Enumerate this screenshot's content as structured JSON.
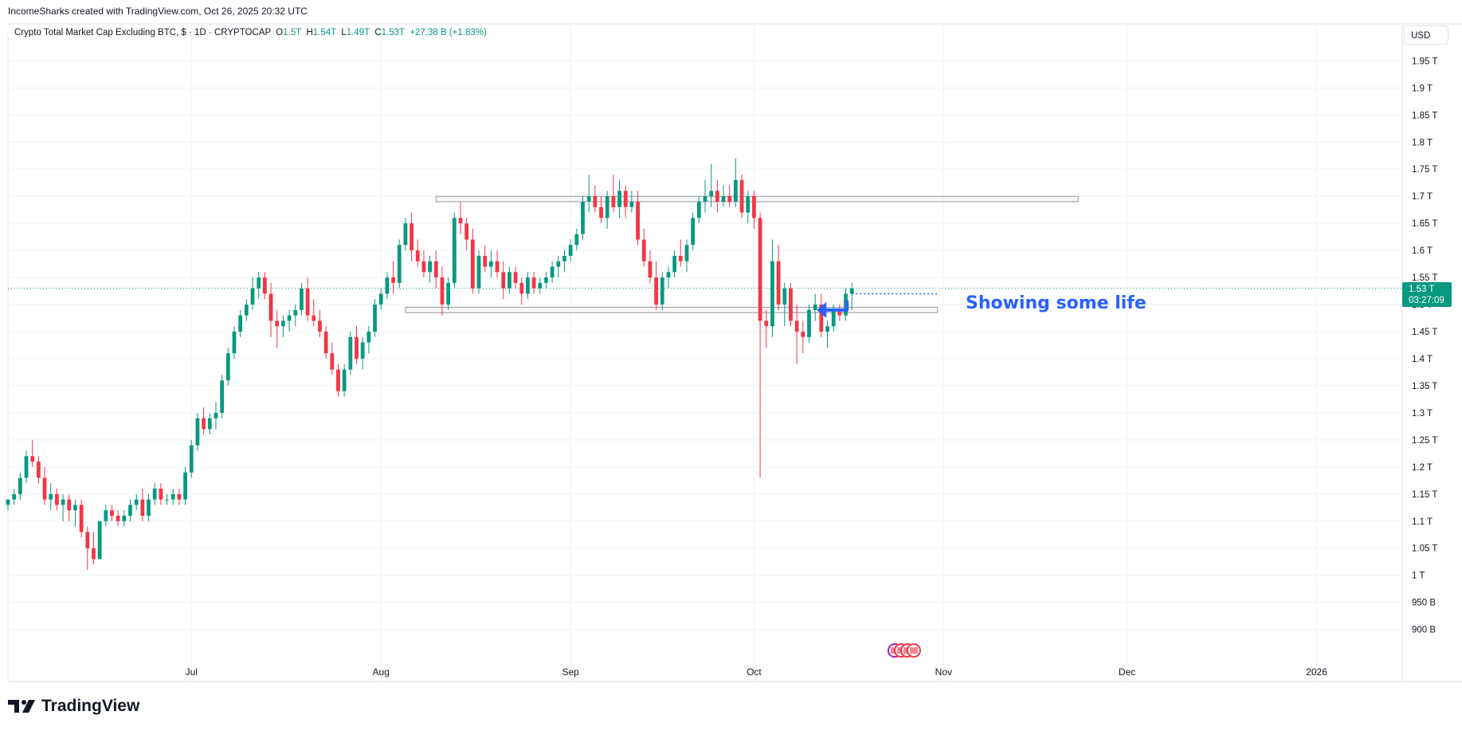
{
  "header": {
    "credit": "IncomeSharks created with TradingView.com, Oct 26, 2025 20:32 UTC",
    "currency": "USD"
  },
  "legend": {
    "symbol": "Crypto Total Market Cap Excluding BTC, $ · 1D · CRYPTOCAP",
    "o_label": "O",
    "o_value": "1.5T",
    "h_label": "H",
    "h_value": "1.54T",
    "l_label": "L",
    "l_value": "1.49T",
    "c_label": "C",
    "c_value": "1.53T",
    "change": "+27.38 B (+1.83%)"
  },
  "price_tag": {
    "price": "1.53 T",
    "countdown": "03:27:09"
  },
  "annotation": "Showing some life",
  "brand": {
    "name": "TradingView"
  },
  "colors": {
    "up": "#089981",
    "down": "#f23645",
    "annotation": "#2962ff",
    "grid": "#f0f3fa"
  },
  "chart_data": {
    "type": "candlestick",
    "y_scale": "T (trillion USD)",
    "ylim": [
      0.87,
      1.98
    ],
    "y_ticks": [
      "900 B",
      "950 B",
      "1 T",
      "1.05 T",
      "1.1 T",
      "1.15 T",
      "1.2 T",
      "1.25 T",
      "1.3 T",
      "1.35 T",
      "1.4 T",
      "1.45 T",
      "1.5 T",
      "1.55 T",
      "1.6 T",
      "1.65 T",
      "1.7 T",
      "1.75 T",
      "1.8 T",
      "1.85 T",
      "1.9 T",
      "1.95 T"
    ],
    "y_tick_values": [
      0.9,
      0.95,
      1.0,
      1.05,
      1.1,
      1.15,
      1.2,
      1.25,
      1.3,
      1.35,
      1.4,
      1.45,
      1.5,
      1.55,
      1.6,
      1.65,
      1.7,
      1.75,
      1.8,
      1.85,
      1.9,
      1.95
    ],
    "x_ticks": [
      {
        "label": "Jul",
        "date": "2025-07-01"
      },
      {
        "label": "Aug",
        "date": "2025-08-01"
      },
      {
        "label": "Sep",
        "date": "2025-09-01"
      },
      {
        "label": "Oct",
        "date": "2025-10-01"
      },
      {
        "label": "Nov",
        "date": "2025-11-01"
      },
      {
        "label": "Dec",
        "date": "2025-12-01"
      },
      {
        "label": "2026",
        "date": "2026-01-01"
      }
    ],
    "xlim": [
      "2025-06-01",
      "2026-01-15"
    ],
    "start_date": "2025-06-01",
    "current_price": 1.53,
    "boxes": [
      {
        "start": "2025-08-10",
        "end": "2025-11-23",
        "low": 1.69,
        "high": 1.7
      },
      {
        "start": "2025-08-05",
        "end": "2025-10-31",
        "low": 1.485,
        "high": 1.495
      }
    ],
    "dotted_level": {
      "start": "2025-10-17",
      "end": "2025-10-31",
      "value": 1.52
    },
    "candles": [
      [
        1.13,
        1.14,
        1.12,
        1.14
      ],
      [
        1.14,
        1.16,
        1.13,
        1.15
      ],
      [
        1.15,
        1.19,
        1.14,
        1.18
      ],
      [
        1.18,
        1.23,
        1.17,
        1.22
      ],
      [
        1.22,
        1.25,
        1.2,
        1.21
      ],
      [
        1.21,
        1.22,
        1.17,
        1.18
      ],
      [
        1.18,
        1.2,
        1.13,
        1.14
      ],
      [
        1.14,
        1.17,
        1.12,
        1.15
      ],
      [
        1.15,
        1.16,
        1.12,
        1.13
      ],
      [
        1.13,
        1.15,
        1.1,
        1.14
      ],
      [
        1.14,
        1.15,
        1.1,
        1.12
      ],
      [
        1.12,
        1.14,
        1.09,
        1.13
      ],
      [
        1.13,
        1.14,
        1.07,
        1.08
      ],
      [
        1.08,
        1.09,
        1.01,
        1.05
      ],
      [
        1.05,
        1.08,
        1.02,
        1.03
      ],
      [
        1.03,
        1.1,
        1.03,
        1.1
      ],
      [
        1.1,
        1.13,
        1.09,
        1.12
      ],
      [
        1.12,
        1.13,
        1.1,
        1.11
      ],
      [
        1.11,
        1.12,
        1.09,
        1.1
      ],
      [
        1.1,
        1.12,
        1.09,
        1.11
      ],
      [
        1.11,
        1.14,
        1.1,
        1.13
      ],
      [
        1.13,
        1.15,
        1.12,
        1.14
      ],
      [
        1.14,
        1.16,
        1.1,
        1.11
      ],
      [
        1.11,
        1.15,
        1.1,
        1.14
      ],
      [
        1.14,
        1.17,
        1.13,
        1.16
      ],
      [
        1.16,
        1.17,
        1.13,
        1.14
      ],
      [
        1.14,
        1.15,
        1.13,
        1.14
      ],
      [
        1.14,
        1.16,
        1.13,
        1.15
      ],
      [
        1.15,
        1.16,
        1.13,
        1.14
      ],
      [
        1.14,
        1.2,
        1.13,
        1.19
      ],
      [
        1.19,
        1.25,
        1.18,
        1.24
      ],
      [
        1.24,
        1.3,
        1.23,
        1.29
      ],
      [
        1.29,
        1.31,
        1.26,
        1.27
      ],
      [
        1.27,
        1.3,
        1.26,
        1.29
      ],
      [
        1.29,
        1.32,
        1.27,
        1.3
      ],
      [
        1.3,
        1.37,
        1.29,
        1.36
      ],
      [
        1.36,
        1.42,
        1.35,
        1.41
      ],
      [
        1.41,
        1.46,
        1.4,
        1.45
      ],
      [
        1.45,
        1.49,
        1.44,
        1.48
      ],
      [
        1.48,
        1.51,
        1.47,
        1.5
      ],
      [
        1.5,
        1.55,
        1.49,
        1.53
      ],
      [
        1.53,
        1.56,
        1.51,
        1.55
      ],
      [
        1.55,
        1.56,
        1.51,
        1.52
      ],
      [
        1.52,
        1.54,
        1.44,
        1.47
      ],
      [
        1.47,
        1.49,
        1.42,
        1.46
      ],
      [
        1.46,
        1.48,
        1.44,
        1.47
      ],
      [
        1.47,
        1.49,
        1.45,
        1.48
      ],
      [
        1.48,
        1.5,
        1.46,
        1.49
      ],
      [
        1.49,
        1.54,
        1.48,
        1.53
      ],
      [
        1.53,
        1.55,
        1.47,
        1.48
      ],
      [
        1.48,
        1.51,
        1.46,
        1.47
      ],
      [
        1.47,
        1.49,
        1.44,
        1.45
      ],
      [
        1.45,
        1.46,
        1.4,
        1.41
      ],
      [
        1.41,
        1.43,
        1.37,
        1.38
      ],
      [
        1.38,
        1.39,
        1.33,
        1.34
      ],
      [
        1.34,
        1.39,
        1.33,
        1.38
      ],
      [
        1.38,
        1.45,
        1.37,
        1.44
      ],
      [
        1.44,
        1.46,
        1.39,
        1.4
      ],
      [
        1.4,
        1.44,
        1.38,
        1.43
      ],
      [
        1.43,
        1.46,
        1.41,
        1.45
      ],
      [
        1.45,
        1.51,
        1.44,
        1.5
      ],
      [
        1.5,
        1.53,
        1.49,
        1.52
      ],
      [
        1.52,
        1.56,
        1.51,
        1.55
      ],
      [
        1.55,
        1.58,
        1.52,
        1.54
      ],
      [
        1.54,
        1.62,
        1.53,
        1.61
      ],
      [
        1.61,
        1.66,
        1.6,
        1.65
      ],
      [
        1.65,
        1.67,
        1.58,
        1.6
      ],
      [
        1.6,
        1.62,
        1.57,
        1.58
      ],
      [
        1.58,
        1.6,
        1.55,
        1.56
      ],
      [
        1.56,
        1.59,
        1.54,
        1.58
      ],
      [
        1.58,
        1.6,
        1.53,
        1.55
      ],
      [
        1.55,
        1.57,
        1.48,
        1.5
      ],
      [
        1.5,
        1.55,
        1.49,
        1.54
      ],
      [
        1.54,
        1.67,
        1.53,
        1.66
      ],
      [
        1.66,
        1.69,
        1.63,
        1.65
      ],
      [
        1.65,
        1.66,
        1.6,
        1.62
      ],
      [
        1.62,
        1.64,
        1.52,
        1.53
      ],
      [
        1.53,
        1.6,
        1.52,
        1.59
      ],
      [
        1.59,
        1.61,
        1.56,
        1.57
      ],
      [
        1.57,
        1.6,
        1.55,
        1.58
      ],
      [
        1.58,
        1.6,
        1.55,
        1.56
      ],
      [
        1.56,
        1.58,
        1.51,
        1.53
      ],
      [
        1.53,
        1.57,
        1.52,
        1.56
      ],
      [
        1.56,
        1.57,
        1.53,
        1.54
      ],
      [
        1.54,
        1.55,
        1.5,
        1.52
      ],
      [
        1.52,
        1.56,
        1.51,
        1.55
      ],
      [
        1.55,
        1.56,
        1.52,
        1.53
      ],
      [
        1.53,
        1.55,
        1.52,
        1.54
      ],
      [
        1.54,
        1.56,
        1.53,
        1.55
      ],
      [
        1.55,
        1.58,
        1.54,
        1.57
      ],
      [
        1.57,
        1.59,
        1.55,
        1.58
      ],
      [
        1.58,
        1.6,
        1.56,
        1.59
      ],
      [
        1.59,
        1.62,
        1.58,
        1.61
      ],
      [
        1.61,
        1.64,
        1.6,
        1.63
      ],
      [
        1.63,
        1.7,
        1.62,
        1.69
      ],
      [
        1.69,
        1.74,
        1.67,
        1.7
      ],
      [
        1.7,
        1.72,
        1.67,
        1.68
      ],
      [
        1.68,
        1.7,
        1.65,
        1.66
      ],
      [
        1.66,
        1.71,
        1.64,
        1.7
      ],
      [
        1.7,
        1.74,
        1.67,
        1.68
      ],
      [
        1.68,
        1.73,
        1.66,
        1.71
      ],
      [
        1.71,
        1.72,
        1.66,
        1.68
      ],
      [
        1.68,
        1.71,
        1.67,
        1.69
      ],
      [
        1.69,
        1.71,
        1.61,
        1.62
      ],
      [
        1.62,
        1.64,
        1.57,
        1.58
      ],
      [
        1.58,
        1.6,
        1.54,
        1.55
      ],
      [
        1.55,
        1.58,
        1.49,
        1.5
      ],
      [
        1.5,
        1.56,
        1.49,
        1.55
      ],
      [
        1.55,
        1.57,
        1.53,
        1.56
      ],
      [
        1.56,
        1.6,
        1.55,
        1.59
      ],
      [
        1.59,
        1.62,
        1.57,
        1.58
      ],
      [
        1.58,
        1.62,
        1.56,
        1.61
      ],
      [
        1.61,
        1.67,
        1.6,
        1.66
      ],
      [
        1.66,
        1.7,
        1.65,
        1.69
      ],
      [
        1.69,
        1.73,
        1.67,
        1.7
      ],
      [
        1.7,
        1.76,
        1.68,
        1.71
      ],
      [
        1.71,
        1.73,
        1.67,
        1.69
      ],
      [
        1.69,
        1.72,
        1.68,
        1.7
      ],
      [
        1.7,
        1.72,
        1.68,
        1.69
      ],
      [
        1.69,
        1.77,
        1.68,
        1.73
      ],
      [
        1.73,
        1.74,
        1.66,
        1.67
      ],
      [
        1.67,
        1.71,
        1.65,
        1.7
      ],
      [
        1.7,
        1.71,
        1.64,
        1.66
      ],
      [
        1.66,
        1.67,
        1.18,
        1.47
      ],
      [
        1.47,
        1.49,
        1.42,
        1.46
      ],
      [
        1.46,
        1.62,
        1.44,
        1.58
      ],
      [
        1.58,
        1.61,
        1.49,
        1.5
      ],
      [
        1.5,
        1.54,
        1.46,
        1.53
      ],
      [
        1.53,
        1.54,
        1.46,
        1.47
      ],
      [
        1.47,
        1.5,
        1.39,
        1.45
      ],
      [
        1.45,
        1.47,
        1.41,
        1.44
      ],
      [
        1.44,
        1.5,
        1.43,
        1.49
      ],
      [
        1.49,
        1.52,
        1.47,
        1.5
      ],
      [
        1.5,
        1.52,
        1.44,
        1.45
      ],
      [
        1.45,
        1.47,
        1.42,
        1.46
      ],
      [
        1.46,
        1.5,
        1.45,
        1.49
      ],
      [
        1.49,
        1.5,
        1.47,
        1.48
      ],
      [
        1.48,
        1.53,
        1.47,
        1.52
      ],
      [
        1.52,
        1.54,
        1.49,
        1.53
      ]
    ]
  }
}
